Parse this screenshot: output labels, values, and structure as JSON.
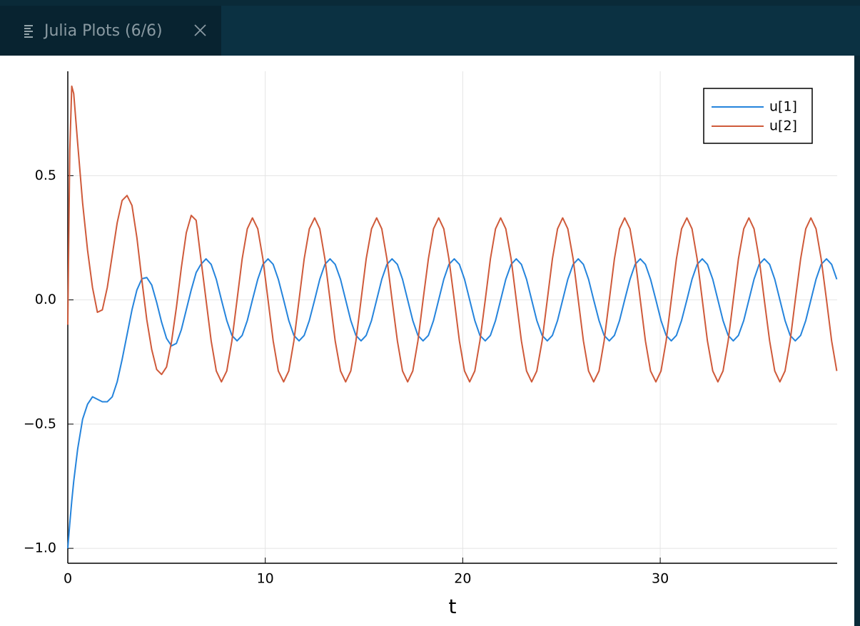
{
  "tab": {
    "title": "Julia Plots (6/6)"
  },
  "chart_data": {
    "type": "line",
    "xlabel": "t",
    "x": [
      0,
      0.1,
      0.2,
      0.3,
      0.5,
      0.75,
      1,
      1.25,
      1.5,
      1.75,
      2,
      2.25,
      2.5,
      2.75,
      3,
      3.25,
      3.5,
      3.75,
      4,
      4.25,
      4.5,
      4.75,
      5,
      5.25,
      5.5,
      5.75,
      6,
      6.25,
      6.5,
      6.74,
      7.0,
      7.26,
      7.52,
      7.78,
      8.05,
      8.31,
      8.57,
      8.83,
      9.09,
      9.35,
      9.62,
      9.88,
      10.14,
      10.4,
      10.66,
      10.93,
      11.19,
      11.45,
      11.71,
      11.97,
      12.23,
      12.5,
      12.76,
      13.02,
      13.28,
      13.54,
      13.81,
      14.07,
      14.33,
      14.59,
      14.85,
      15.11,
      15.38,
      15.64,
      15.9,
      16.16,
      16.42,
      16.69,
      16.95,
      17.21,
      17.47,
      17.73,
      17.99,
      18.26,
      18.52,
      18.78,
      19.04,
      19.3,
      19.57,
      19.83,
      20.09,
      20.35,
      20.61,
      20.87,
      21.14,
      21.4,
      21.66,
      21.92,
      22.18,
      22.45,
      22.71,
      22.97,
      23.23,
      23.49,
      23.75,
      24.02,
      24.28,
      24.54,
      24.8,
      25.06,
      25.32,
      25.59,
      25.85,
      26.11,
      26.37,
      26.63,
      26.9,
      27.16,
      27.42,
      27.68,
      27.94,
      28.2,
      28.47,
      28.73,
      28.99,
      29.25,
      29.51,
      29.78,
      30.04,
      30.3,
      30.56,
      30.82,
      31.08,
      31.35,
      31.61,
      31.87,
      32.13,
      32.39,
      32.66,
      32.92,
      33.18,
      33.44,
      33.7,
      33.96,
      34.23,
      34.49,
      34.75,
      35.01,
      35.27,
      35.54,
      35.8,
      36.06,
      36.32,
      36.58,
      36.84,
      37.11,
      37.37,
      37.63,
      37.89,
      38.15,
      38.42,
      38.68,
      38.94
    ],
    "series": [
      {
        "name": "u[1]",
        "color": "#2584dc",
        "values": [
          -1,
          -0.9,
          -0.81,
          -0.73,
          -0.6,
          -0.48,
          -0.42,
          -0.39,
          -0.4,
          -0.41,
          -0.41,
          -0.39,
          -0.33,
          -0.24,
          -0.14,
          -0.04,
          0.04,
          0.085,
          0.09,
          0.06,
          -0.01,
          -0.09,
          -0.155,
          -0.185,
          -0.175,
          -0.12,
          -0.04,
          0.04,
          0.11,
          0.143,
          0.165,
          0.143,
          0.083,
          0,
          -0.083,
          -0.143,
          -0.165,
          -0.143,
          -0.083,
          0,
          0.083,
          0.143,
          0.165,
          0.143,
          0.083,
          0,
          -0.083,
          -0.143,
          -0.165,
          -0.143,
          -0.083,
          0,
          0.083,
          0.143,
          0.165,
          0.143,
          0.083,
          0,
          -0.083,
          -0.143,
          -0.165,
          -0.143,
          -0.083,
          0,
          0.083,
          0.143,
          0.165,
          0.143,
          0.083,
          0,
          -0.083,
          -0.143,
          -0.165,
          -0.143,
          -0.083,
          0,
          0.083,
          0.143,
          0.165,
          0.143,
          0.083,
          0,
          -0.083,
          -0.143,
          -0.165,
          -0.143,
          -0.083,
          0,
          0.083,
          0.143,
          0.165,
          0.143,
          0.083,
          0,
          -0.083,
          -0.143,
          -0.165,
          -0.143,
          -0.083,
          0,
          0.083,
          0.143,
          0.165,
          0.143,
          0.083,
          0,
          -0.083,
          -0.143,
          -0.165,
          -0.143,
          -0.083,
          0,
          0.083,
          0.143,
          0.165,
          0.143,
          0.083,
          0,
          -0.083,
          -0.143,
          -0.165,
          -0.143,
          -0.083,
          0,
          0.083,
          0.143,
          0.165,
          0.143,
          0.083,
          0,
          -0.083,
          -0.143,
          -0.165,
          -0.143,
          -0.083,
          0,
          0.083,
          0.143,
          0.165,
          0.143,
          0.083,
          0,
          -0.083,
          -0.143,
          -0.165,
          -0.143,
          -0.083,
          0,
          0.083,
          0.143,
          0.165,
          0.143,
          0.083
        ]
      },
      {
        "name": "u[2]",
        "color": "#cf5a3a",
        "values": [
          -0.1,
          0.6,
          0.86,
          0.83,
          0.63,
          0.39,
          0.2,
          0.05,
          -0.05,
          -0.04,
          0.05,
          0.18,
          0.31,
          0.4,
          0.42,
          0.38,
          0.25,
          0.08,
          -0.08,
          -0.2,
          -0.28,
          -0.3,
          -0.27,
          -0.17,
          -0.03,
          0.13,
          0.27,
          0.34,
          0.32,
          0.165,
          0,
          -0.165,
          -0.286,
          -0.33,
          -0.286,
          -0.165,
          0,
          0.165,
          0.286,
          0.33,
          0.286,
          0.165,
          0,
          -0.165,
          -0.286,
          -0.33,
          -0.286,
          -0.165,
          0,
          0.165,
          0.286,
          0.33,
          0.286,
          0.165,
          0,
          -0.165,
          -0.286,
          -0.33,
          -0.286,
          -0.165,
          0,
          0.165,
          0.286,
          0.33,
          0.286,
          0.165,
          0,
          -0.165,
          -0.286,
          -0.33,
          -0.286,
          -0.165,
          0,
          0.165,
          0.286,
          0.33,
          0.286,
          0.165,
          0,
          -0.165,
          -0.286,
          -0.33,
          -0.286,
          -0.165,
          0,
          0.165,
          0.286,
          0.33,
          0.286,
          0.165,
          0,
          -0.165,
          -0.286,
          -0.33,
          -0.286,
          -0.165,
          0,
          0.165,
          0.286,
          0.33,
          0.286,
          0.165,
          0,
          -0.165,
          -0.286,
          -0.33,
          -0.286,
          -0.165,
          0,
          0.165,
          0.286,
          0.33,
          0.286,
          0.165,
          0,
          -0.165,
          -0.286,
          -0.33,
          -0.286,
          -0.165,
          0,
          0.165,
          0.286,
          0.33,
          0.286,
          0.165,
          0,
          -0.165,
          -0.286,
          -0.33,
          -0.286,
          -0.165,
          0,
          0.165,
          0.286,
          0.33,
          0.286,
          0.165,
          0,
          -0.165,
          -0.286,
          -0.33,
          -0.286,
          -0.165,
          0,
          0.165,
          0.286,
          0.33,
          0.286,
          0.165,
          0,
          -0.165,
          -0.286
        ]
      }
    ],
    "xlim": [
      0,
      38.96
    ],
    "xticks": [
      0,
      10,
      20,
      30
    ],
    "ylim": [
      -1.06,
      0.92
    ],
    "yticks": [
      {
        "value": -1,
        "label": "−1.0"
      },
      {
        "value": -0.5,
        "label": "−0.5"
      },
      {
        "value": 0,
        "label": "0.0"
      },
      {
        "value": 0.5,
        "label": "0.5"
      }
    ],
    "grid": true,
    "legend": "top-right"
  }
}
